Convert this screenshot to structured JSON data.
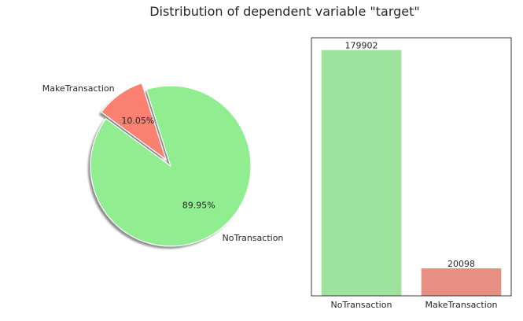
{
  "figure": {
    "suptitle": "Distribution of dependent variable \"target\""
  },
  "chart_data": [
    {
      "type": "pie",
      "title": "",
      "slices": [
        {
          "label": "NoTransaction",
          "value": 89.95,
          "pct_label": "89.95%",
          "color": "#90ee90"
        },
        {
          "label": "MakeTransaction",
          "value": 10.05,
          "pct_label": "10.05%",
          "color": "#fa8072",
          "exploded": true
        }
      ],
      "shadow": true
    },
    {
      "type": "bar",
      "title": "",
      "categories": [
        "NoTransaction",
        "MakeTransaction"
      ],
      "values": [
        179902,
        20098
      ],
      "value_labels": [
        "179902",
        "20098"
      ],
      "colors": [
        "#9de39d",
        "#e88f84"
      ],
      "xlabel": "",
      "ylabel": "",
      "y_ticks_visible": false,
      "grid": false
    }
  ]
}
